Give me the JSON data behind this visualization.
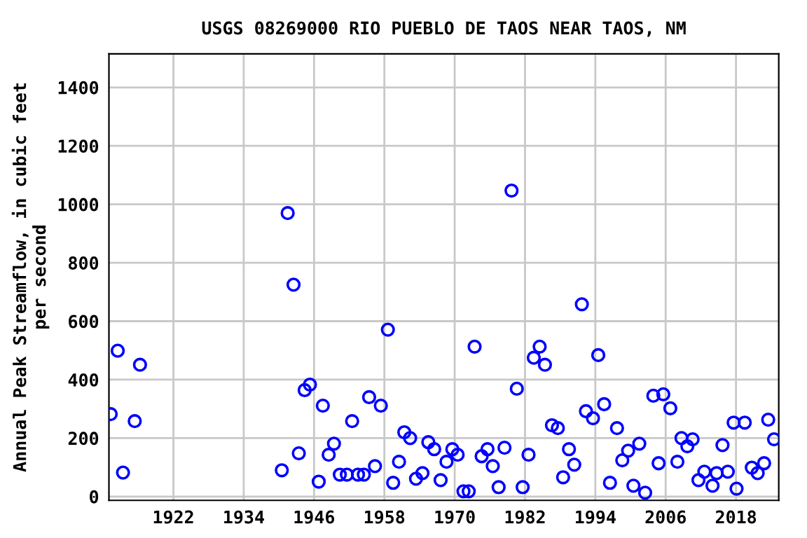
{
  "chart_data": {
    "type": "scatter",
    "title": "USGS 08269000 RIO PUEBLO DE TAOS NEAR TAOS, NM",
    "ylabel": "Annual Peak Streamflow, in cubic feet\nper second",
    "x": [
      1911.3,
      1912.5,
      1913.4,
      1915.4,
      1916.3,
      1940.5,
      1941.5,
      1942.5,
      1943.4,
      1944.4,
      1945.3,
      1946.8,
      1947.5,
      1948.5,
      1949.4,
      1950.4,
      1951.6,
      1952.5,
      1953.5,
      1954.5,
      1955.4,
      1956.4,
      1957.4,
      1958.6,
      1959.5,
      1960.5,
      1961.4,
      1962.4,
      1963.4,
      1964.5,
      1965.5,
      1966.5,
      1967.6,
      1968.6,
      1969.6,
      1970.5,
      1971.5,
      1972.4,
      1973.4,
      1974.6,
      1975.6,
      1976.5,
      1977.5,
      1978.5,
      1979.7,
      1980.6,
      1981.6,
      1982.6,
      1983.5,
      1984.5,
      1985.4,
      1986.6,
      1987.6,
      1988.5,
      1989.5,
      1990.4,
      1991.7,
      1992.4,
      1993.6,
      1994.5,
      1995.5,
      1996.5,
      1997.7,
      1998.6,
      1999.6,
      2000.5,
      2001.5,
      2002.5,
      2003.9,
      2004.8,
      2005.6,
      2006.8,
      2008.0,
      2008.7,
      2009.7,
      2010.6,
      2011.6,
      2012.6,
      2014.0,
      2014.7,
      2015.7,
      2016.6,
      2017.6,
      2018.1,
      2019.5,
      2020.7,
      2021.7,
      2022.8,
      2023.5,
      2024.5
    ],
    "values": [
      282,
      499,
      82,
      258,
      451,
      90,
      970,
      725,
      148,
      364,
      383,
      51,
      311,
      143,
      181,
      75,
      75,
      258,
      75,
      75,
      340,
      104,
      311,
      571,
      47,
      119,
      220,
      200,
      61,
      80,
      186,
      162,
      56,
      119,
      162,
      143,
      18,
      18,
      513,
      138,
      162,
      104,
      32,
      167,
      1047,
      369,
      32,
      143,
      475,
      513,
      451,
      244,
      234,
      66,
      162,
      109,
      658,
      292,
      268,
      484,
      316,
      47,
      234,
      124,
      157,
      37,
      181,
      13,
      345,
      114,
      350,
      302,
      119,
      200,
      172,
      196,
      56,
      85,
      37,
      80,
      176,
      85,
      253,
      27,
      253,
      99,
      80,
      114,
      263,
      196
    ],
    "color": "#0000ff",
    "marker": "circle",
    "grid": true,
    "xlim": [
      1911,
      2025.3
    ],
    "xticks": [
      1922,
      1934,
      1946,
      1958,
      1970,
      1982,
      1994,
      2006,
      2018
    ],
    "ylim": [
      -13,
      1515
    ],
    "yticks": [
      0,
      200,
      400,
      600,
      800,
      1000,
      1200,
      1400
    ]
  }
}
